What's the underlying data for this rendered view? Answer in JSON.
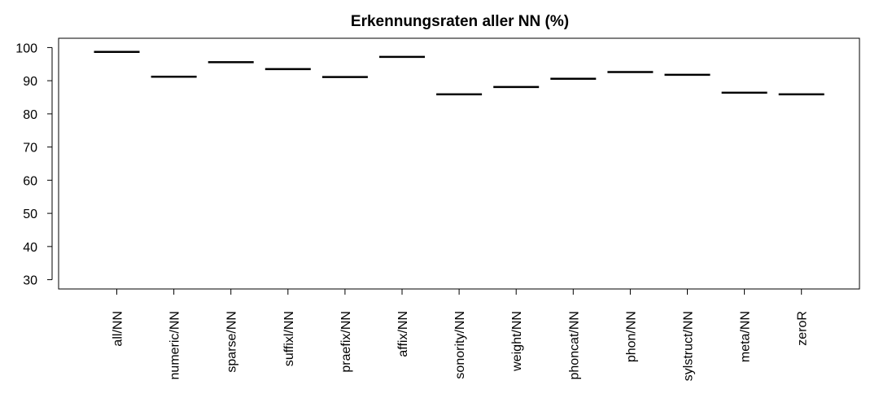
{
  "chart_data": {
    "type": "bar",
    "title": "Erkennungsraten aller NN (%)",
    "xlabel": "",
    "ylabel": "",
    "categories": [
      "all/NN",
      "numeric/NN",
      "sparse/NN",
      "suffixl/NN",
      "praefix/NN",
      "affix/NN",
      "sonority/NN",
      "weight/NN",
      "phoncat/NN",
      "phon/NN",
      "sylstruct/NN",
      "meta/NN",
      "zeroR"
    ],
    "values": [
      98.7,
      91.2,
      95.6,
      93.5,
      91.1,
      97.2,
      85.9,
      88.1,
      90.6,
      92.6,
      91.8,
      86.4,
      85.9
    ],
    "ylim": [
      27.2,
      102.8
    ],
    "yticks": [
      30,
      40,
      50,
      60,
      70,
      80,
      90,
      100
    ],
    "grid": false
  }
}
